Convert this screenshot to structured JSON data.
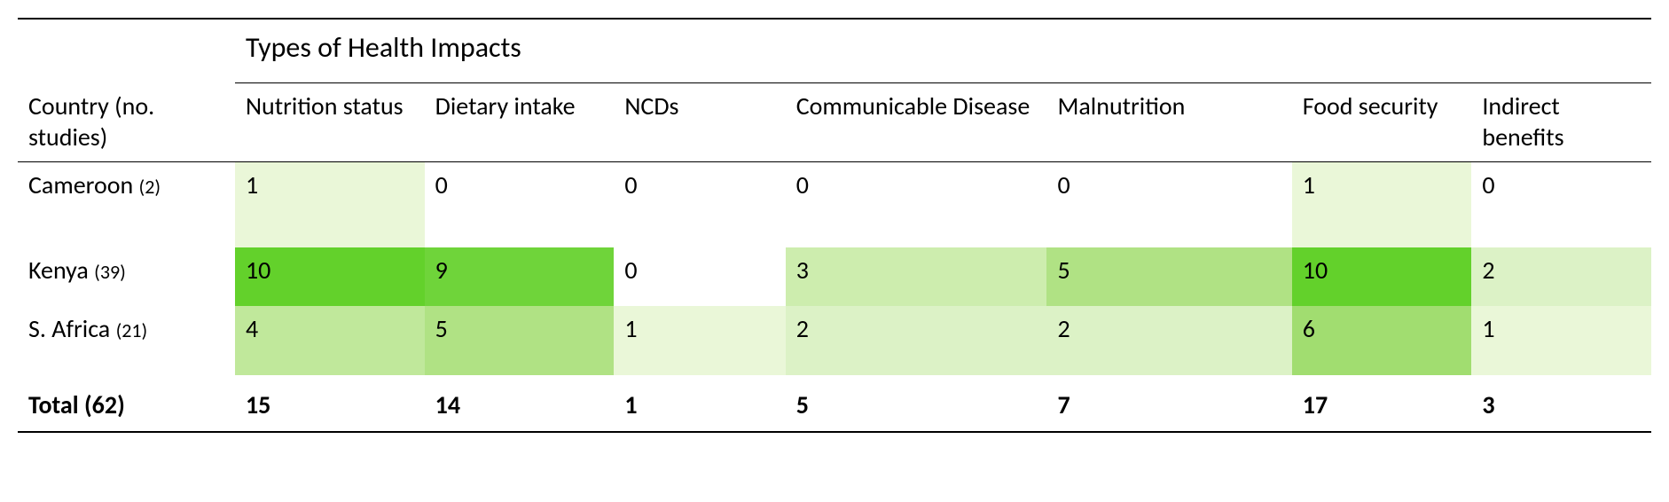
{
  "table": {
    "type": "table",
    "section_title": "Types of Health Impacts",
    "row_header_label": "Country",
    "row_header_sublabel": "(no. studies)",
    "columns": [
      {
        "label": "Nutrition status",
        "width": 11.6
      },
      {
        "label": "Dietary intake",
        "width": 11.6
      },
      {
        "label": "NCDs",
        "width": 10.5
      },
      {
        "label": "Communicable Disease",
        "width": 16.0
      },
      {
        "label": "Malnutrition",
        "width": 15.0
      },
      {
        "label": "Food security",
        "width": 11.0
      },
      {
        "label": "Indirect benefits",
        "width": 11.0
      }
    ],
    "row_label_width": 13.3,
    "rows": [
      {
        "label": "Cameroon",
        "sublabel": "(2)",
        "values": [
          1,
          0,
          0,
          0,
          0,
          1,
          0
        ],
        "colors": [
          "#eaf7d8",
          "#ffffff",
          "#ffffff",
          "#ffffff",
          "#ffffff",
          "#eaf7d8",
          "#ffffff"
        ],
        "height": "tall"
      },
      {
        "label": "Kenya",
        "sublabel": "(39)",
        "values": [
          10,
          9,
          0,
          3,
          5,
          10,
          2
        ],
        "colors": [
          "#63d12b",
          "#6fd43a",
          "#ffffff",
          "#cdedae",
          "#b0e284",
          "#63d12b",
          "#dcf2c6"
        ],
        "height": "short"
      },
      {
        "label": "S. Africa",
        "sublabel": "(21)",
        "values": [
          4,
          5,
          1,
          2,
          2,
          6,
          1
        ],
        "colors": [
          "#c0e89b",
          "#b0e284",
          "#eaf7d8",
          "#dcf2c6",
          "#dcf2c6",
          "#a1dd70",
          "#eaf7d8"
        ],
        "height": "short"
      }
    ],
    "total": {
      "label": "Total (62)",
      "values": [
        15,
        14,
        1,
        5,
        7,
        17,
        3
      ]
    },
    "styling": {
      "background_color": "#ffffff",
      "border_color": "#000000",
      "font_family": "Calibri",
      "base_fontsize": 28,
      "header_fontsize": 32,
      "sublabel_fontsize": 22
    }
  }
}
